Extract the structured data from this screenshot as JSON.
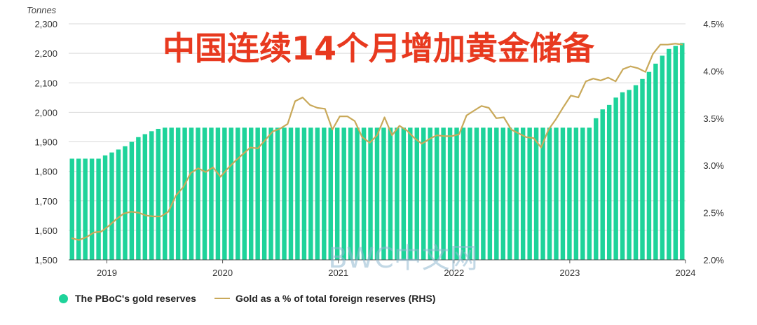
{
  "chart_data": {
    "type": "bar",
    "title": "中国连续14个月增加黄金储备",
    "left_axis_unit": "Tonnes",
    "ylim_left": [
      1500,
      2300
    ],
    "yticks_left": [
      "1,500",
      "1,600",
      "1,700",
      "1,800",
      "1,900",
      "2,000",
      "2,100",
      "2,200",
      "2,300"
    ],
    "ylim_right": [
      2.0,
      4.5
    ],
    "yticks_right": [
      "2.0%",
      "2.5%",
      "3.0%",
      "3.5%",
      "4.0%",
      "4.5%"
    ],
    "xticks": [
      "2019",
      "2020",
      "2021",
      "2022",
      "2023",
      "2024"
    ],
    "grid": "horizontal",
    "legend_position": "bottom-left",
    "series": [
      {
        "name": "The PBoC's gold reserves",
        "kind": "bar",
        "color": "#1ed39a",
        "start": "2018-09",
        "values": [
          1843,
          1843,
          1843,
          1843,
          1843,
          1854,
          1864,
          1874,
          1885,
          1900,
          1916,
          1926,
          1936,
          1944,
          1948,
          1948,
          1948,
          1948,
          1948,
          1948,
          1948,
          1948,
          1948,
          1948,
          1948,
          1948,
          1948,
          1948,
          1948,
          1948,
          1948,
          1948,
          1948,
          1948,
          1948,
          1948,
          1948,
          1948,
          1948,
          1948,
          1948,
          1948,
          1948,
          1948,
          1948,
          1948,
          1948,
          1948,
          1948,
          1948,
          1948,
          1948,
          1948,
          1948,
          1948,
          1948,
          1948,
          1948,
          1948,
          1948,
          1948,
          1948,
          1948,
          1948,
          1948,
          1948,
          1948,
          1948,
          1948,
          1948,
          1948,
          1948,
          1948,
          1948,
          1948,
          1948,
          1948,
          1948,
          1948,
          1980,
          2010,
          2025,
          2050,
          2068,
          2076,
          2092,
          2113,
          2137,
          2165,
          2192,
          2215,
          2225,
          2235
        ]
      },
      {
        "name": "Gold as a % of total foreign reserves (RHS)",
        "kind": "line",
        "color": "#c9a95a",
        "start": "2018-09",
        "values": [
          2.23,
          2.21,
          2.24,
          2.29,
          2.3,
          2.36,
          2.43,
          2.49,
          2.51,
          2.5,
          2.47,
          2.46,
          2.46,
          2.51,
          2.68,
          2.77,
          2.92,
          2.97,
          2.93,
          2.98,
          2.88,
          2.97,
          3.05,
          3.12,
          3.19,
          3.18,
          3.27,
          3.36,
          3.39,
          3.44,
          3.68,
          3.72,
          3.64,
          3.61,
          3.6,
          3.38,
          3.52,
          3.52,
          3.47,
          3.3,
          3.24,
          3.32,
          3.51,
          3.32,
          3.42,
          3.37,
          3.29,
          3.23,
          3.28,
          3.32,
          3.31,
          3.31,
          3.33,
          3.53,
          3.58,
          3.63,
          3.61,
          3.5,
          3.51,
          3.38,
          3.34,
          3.3,
          3.29,
          3.19,
          3.38,
          3.49,
          3.62,
          3.74,
          3.72,
          3.89,
          3.92,
          3.9,
          3.93,
          3.89,
          4.02,
          4.05,
          4.03,
          3.99,
          4.18,
          4.28,
          4.28,
          4.29,
          4.28
        ]
      }
    ]
  },
  "watermark": "BWC中文网"
}
